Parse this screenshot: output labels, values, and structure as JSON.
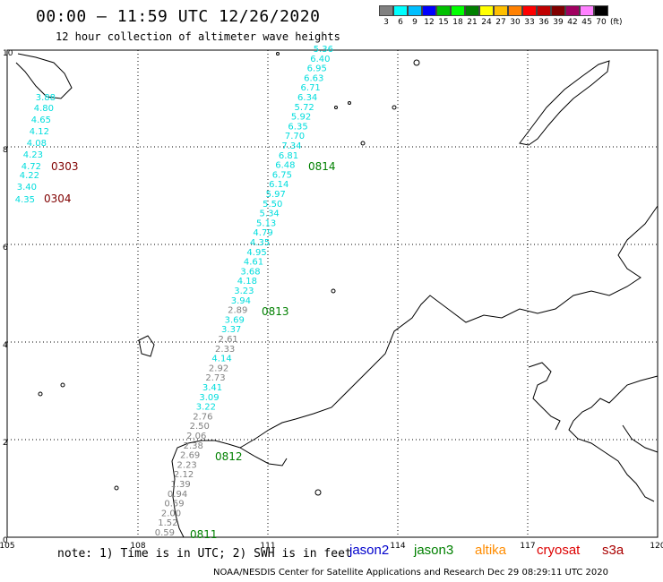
{
  "title": "00:00 – 11:59 UTC 12/26/2020",
  "subtitle": "12 hour collection of altimeter wave heights",
  "legend": {
    "colors": [
      "#808080",
      "#00ffff",
      "#00bfff",
      "#0000ff",
      "#00c000",
      "#00ff00",
      "#008000",
      "#ffff00",
      "#ffbf00",
      "#ff8000",
      "#ff0000",
      "#c00000",
      "#800000",
      "#a00060",
      "#ff80ff",
      "#000000"
    ],
    "labels": [
      "3",
      "6",
      "9",
      "12",
      "15",
      "18",
      "21",
      "24",
      "27",
      "30",
      "33",
      "36",
      "39",
      "42",
      "45",
      "70"
    ],
    "unit": "(ft)"
  },
  "axes": {
    "x_ticks": [
      "105",
      "108",
      "111",
      "114",
      "117",
      "120"
    ],
    "y_ticks": [
      "0",
      "2",
      "4",
      "6",
      "8",
      "10"
    ]
  },
  "track": [
    {
      "v": "5.36",
      "c": "#00dddd"
    },
    {
      "v": "6.40",
      "c": "#00dddd"
    },
    {
      "v": "6.95",
      "c": "#00dddd"
    },
    {
      "v": "6.63",
      "c": "#00dddd"
    },
    {
      "v": "6.71",
      "c": "#00dddd"
    },
    {
      "v": "6.34",
      "c": "#00dddd"
    },
    {
      "v": "5.72",
      "c": "#00dddd"
    },
    {
      "v": "5.92",
      "c": "#00dddd"
    },
    {
      "v": "6.35",
      "c": "#00dddd"
    },
    {
      "v": "7.70",
      "c": "#00dddd"
    },
    {
      "v": "7.34",
      "c": "#00dddd"
    },
    {
      "v": "6.81",
      "c": "#00dddd"
    },
    {
      "v": "6.48",
      "c": "#00dddd"
    },
    {
      "v": "6.75",
      "c": "#00dddd"
    },
    {
      "v": "6.14",
      "c": "#00dddd"
    },
    {
      "v": "5.97",
      "c": "#00dddd"
    },
    {
      "v": "5.50",
      "c": "#00dddd"
    },
    {
      "v": "5.34",
      "c": "#00dddd"
    },
    {
      "v": "5.13",
      "c": "#00dddd"
    },
    {
      "v": "4.79",
      "c": "#00dddd"
    },
    {
      "v": "4.35",
      "c": "#00dddd"
    },
    {
      "v": "4.95",
      "c": "#00dddd"
    },
    {
      "v": "4.61",
      "c": "#00dddd"
    },
    {
      "v": "3.68",
      "c": "#00dddd"
    },
    {
      "v": "4.18",
      "c": "#00dddd"
    },
    {
      "v": "3.23",
      "c": "#00dddd"
    },
    {
      "v": "3.94",
      "c": "#00dddd"
    },
    {
      "v": "2.89",
      "c": "#808080"
    },
    {
      "v": "3.69",
      "c": "#00dddd"
    },
    {
      "v": "3.37",
      "c": "#00dddd"
    },
    {
      "v": "2.61",
      "c": "#808080"
    },
    {
      "v": "2.33",
      "c": "#808080"
    },
    {
      "v": "4.14",
      "c": "#00dddd"
    },
    {
      "v": "2.92",
      "c": "#808080"
    },
    {
      "v": "2.73",
      "c": "#808080"
    },
    {
      "v": "3.41",
      "c": "#00dddd"
    },
    {
      "v": "3.09",
      "c": "#00dddd"
    },
    {
      "v": "3.22",
      "c": "#00dddd"
    },
    {
      "v": "2.76",
      "c": "#808080"
    },
    {
      "v": "2.50",
      "c": "#808080"
    },
    {
      "v": "2.06",
      "c": "#808080"
    },
    {
      "v": "2.38",
      "c": "#808080"
    },
    {
      "v": "2.69",
      "c": "#808080"
    },
    {
      "v": "2.23",
      "c": "#808080"
    },
    {
      "v": "2.12",
      "c": "#808080"
    },
    {
      "v": "1.39",
      "c": "#808080"
    },
    {
      "v": "0.94",
      "c": "#808080"
    },
    {
      "v": "0.59",
      "c": "#808080"
    },
    {
      "v": "2.00",
      "c": "#808080"
    },
    {
      "v": "1.52",
      "c": "#808080"
    },
    {
      "v": "0.59",
      "c": "#808080"
    }
  ],
  "left_track": [
    {
      "v": "3.88"
    },
    {
      "v": "4.80"
    },
    {
      "v": "4.65"
    },
    {
      "v": "4.12"
    },
    {
      "v": "4.08"
    },
    {
      "v": "4.23"
    },
    {
      "v": "4.72"
    },
    {
      "v": "4.22"
    },
    {
      "v": "3.40"
    },
    {
      "v": "4.35"
    }
  ],
  "pass_labels": [
    {
      "id": "0814",
      "color": "#008000"
    },
    {
      "id": "0813",
      "color": "#008000"
    },
    {
      "id": "0812",
      "color": "#008000"
    },
    {
      "id": "0811",
      "color": "#008000"
    },
    {
      "id": "0303",
      "color": "#800000"
    },
    {
      "id": "0304",
      "color": "#800000"
    }
  ],
  "note": "note: 1) Time is in UTC; 2) SWH is in feet",
  "satellites": [
    {
      "name": "jason2",
      "color": "#0000cc"
    },
    {
      "name": "jason3",
      "color": "#008000"
    },
    {
      "name": "altika",
      "color": "#ff8c00"
    },
    {
      "name": "cryosat",
      "color": "#dd0000"
    },
    {
      "name": "s3a",
      "color": "#aa0000"
    }
  ],
  "credit": "NOAA/NESDIS Center for Satellite Applications and Research    Dec 29 08:29:11 UTC 2020"
}
